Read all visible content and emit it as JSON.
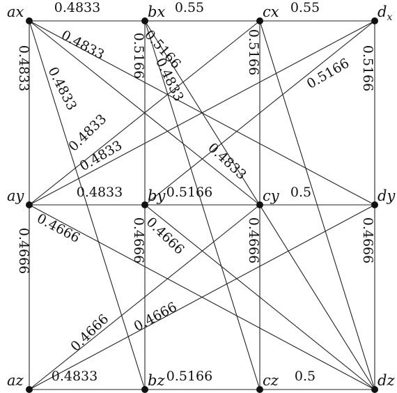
{
  "nodes": [
    {
      "id": "ax",
      "label": "ax"
    },
    {
      "id": "bx",
      "label": "bx"
    },
    {
      "id": "cx",
      "label": "cx"
    },
    {
      "id": "dx",
      "label": "d",
      "sub": "x"
    },
    {
      "id": "ay",
      "label": "ay"
    },
    {
      "id": "by",
      "label": "by"
    },
    {
      "id": "cy",
      "label": "cy"
    },
    {
      "id": "dy",
      "label": "dy"
    },
    {
      "id": "az",
      "label": "az"
    },
    {
      "id": "bz",
      "label": "bz"
    },
    {
      "id": "cz",
      "label": "cz"
    },
    {
      "id": "dz",
      "label": "dz"
    }
  ],
  "edges": [
    {
      "from": "ax",
      "to": "bx",
      "weight": "0.4833"
    },
    {
      "from": "bx",
      "to": "cx",
      "weight": "0.55"
    },
    {
      "from": "cx",
      "to": "dx",
      "weight": "0.55"
    },
    {
      "from": "ay",
      "to": "by",
      "weight": "0.4833"
    },
    {
      "from": "by",
      "to": "cy",
      "weight": "0.5166"
    },
    {
      "from": "cy",
      "to": "dy",
      "weight": "0.5"
    },
    {
      "from": "az",
      "to": "bz",
      "weight": "0.4833"
    },
    {
      "from": "bz",
      "to": "cz",
      "weight": "0.5166"
    },
    {
      "from": "cz",
      "to": "dz",
      "weight": "0.5"
    },
    {
      "from": "ax",
      "to": "ay",
      "weight": "0.4833"
    },
    {
      "from": "bx",
      "to": "by",
      "weight": "0.5166"
    },
    {
      "from": "cx",
      "to": "cy",
      "weight": "0.5166"
    },
    {
      "from": "dx",
      "to": "dy",
      "weight": "0.5166"
    },
    {
      "from": "ay",
      "to": "az",
      "weight": "0.4666"
    },
    {
      "from": "by",
      "to": "bz",
      "weight": "0.4666"
    },
    {
      "from": "cy",
      "to": "cz",
      "weight": "0.4666"
    },
    {
      "from": "dy",
      "to": "dz",
      "weight": "0.4666"
    },
    {
      "from": "ax",
      "to": "bz",
      "weight": "0.4833"
    },
    {
      "from": "ax",
      "to": "cy",
      "weight": "0.4833"
    },
    {
      "from": "ax",
      "to": "dy",
      "weight": "0.4833"
    },
    {
      "from": "bx",
      "to": "cz",
      "weight": "0.4833"
    },
    {
      "from": "bx",
      "to": "dz",
      "weight": "0.5166"
    },
    {
      "from": "cx",
      "to": "dz",
      "weight": ""
    },
    {
      "from": "ay",
      "to": "cx",
      "weight": "0.4833"
    },
    {
      "from": "ay",
      "to": "dx",
      "weight": "0.4833"
    },
    {
      "from": "by",
      "to": "dx",
      "weight": "0.5166"
    },
    {
      "from": "ay",
      "to": "dz",
      "weight": "0.4666"
    },
    {
      "from": "by",
      "to": "dz",
      "weight": "0.4666"
    },
    {
      "from": "az",
      "to": "cy",
      "weight": "0.4666"
    },
    {
      "from": "az",
      "to": "dy",
      "weight": "0.4666"
    }
  ]
}
